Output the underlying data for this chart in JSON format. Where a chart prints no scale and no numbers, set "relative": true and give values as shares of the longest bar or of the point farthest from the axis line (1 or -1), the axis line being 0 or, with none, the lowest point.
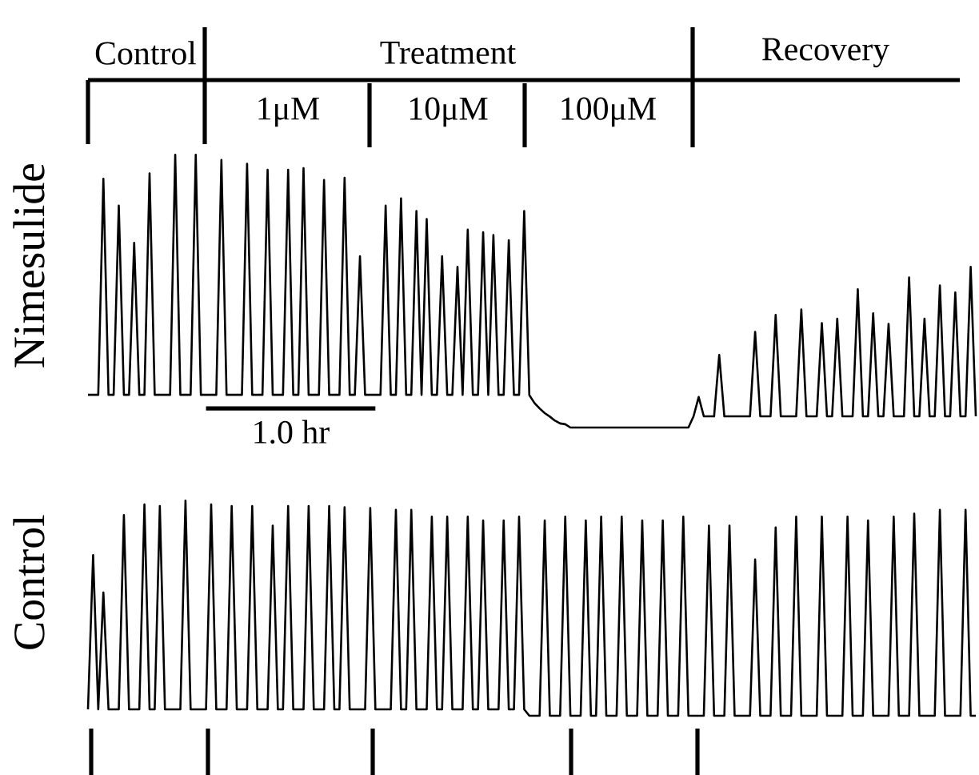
{
  "chart_data": [
    {
      "type": "line",
      "relative": true,
      "ylabel": "Nimesulide",
      "annotations": [
        "Control",
        "Treatment",
        "Recovery",
        "1μM",
        "10μM",
        "100μM"
      ],
      "categories": [
        null,
        null,
        null,
        null,
        null,
        null,
        null,
        null,
        null,
        null,
        null,
        null,
        null,
        null,
        null,
        null,
        null,
        null,
        null,
        null,
        null,
        null,
        null,
        null,
        null,
        null,
        null,
        null,
        null,
        null,
        null,
        null,
        null,
        null,
        null,
        null,
        null,
        null,
        null,
        null,
        null,
        null,
        null,
        null,
        null,
        null,
        null,
        null,
        null,
        null,
        null,
        null,
        null,
        null,
        null,
        null,
        null,
        null,
        null,
        null,
        null,
        null,
        null,
        null,
        null,
        null,
        null,
        null,
        null,
        null,
        null,
        null,
        null,
        null,
        null,
        null,
        null,
        null,
        null,
        null,
        null,
        null,
        null,
        null,
        null,
        null,
        null,
        null,
        null,
        null,
        null,
        null,
        null,
        null,
        null,
        null,
        null,
        null,
        null,
        null,
        null,
        null,
        null,
        null,
        null,
        null,
        null,
        null,
        null,
        null,
        null,
        null,
        null,
        null,
        null,
        null,
        null,
        null,
        null,
        null,
        null,
        null,
        null,
        null,
        null,
        null,
        null,
        null,
        null,
        null,
        null,
        null,
        null,
        null,
        null,
        null,
        null,
        null,
        null,
        null,
        null,
        null,
        null,
        null,
        null,
        null,
        null,
        null,
        null,
        null,
        null,
        null,
        null,
        null,
        null,
        null,
        null,
        null,
        null,
        null,
        null,
        null,
        null,
        null,
        null,
        null,
        null,
        null,
        null,
        null,
        null,
        null,
        null,
        null
      ],
      "series": [
        {
          "color": "#000000",
          "values": [
            0.12,
            0.12,
            0.12,
            0.912,
            0.12,
            0.12,
            0.814,
            0.12,
            0.12,
            0.677,
            0.12,
            0.12,
            0.932,
            0.12,
            0.12,
            0.12,
            0.12,
            1,
            0.12,
            0.12,
            0.12,
            1,
            0.12,
            0.12,
            0.12,
            0.12,
            0.981,
            0.12,
            0.12,
            0.12,
            0.12,
            0.967,
            0.12,
            0.12,
            0.12,
            0.945,
            0.12,
            0.12,
            0.12,
            0.945,
            0.12,
            0.12,
            0.951,
            0.12,
            0.12,
            0.12,
            0.908,
            0.12,
            0.12,
            0.12,
            0.916,
            0.12,
            0.12,
            0.628,
            0.12,
            0.12,
            0.12,
            0.12,
            0.814,
            0.12,
            0.12,
            0.84,
            0.12,
            0.12,
            0.794,
            0.12,
            0.765,
            0.12,
            0.12,
            0.628,
            0.12,
            0.12,
            0.589,
            0.12,
            0.726,
            0.12,
            0.12,
            0.716,
            0.12,
            0.706,
            0.12,
            0.12,
            0.687,
            0.12,
            0.12,
            0.794,
            0.119,
            0.09,
            0.07,
            0.053,
            0.04,
            0.025,
            0.015,
            0.012,
            0,
            0,
            0,
            0,
            0,
            0,
            0,
            0,
            0,
            0,
            0,
            0,
            0,
            0,
            0,
            0,
            0,
            0,
            0,
            0,
            0,
            0,
            0,
            0,
            0.041,
            0.112,
            0.041,
            0.041,
            0.041,
            0.266,
            0.041,
            0.041,
            0.041,
            0.041,
            0.041,
            0.041,
            0.351,
            0.041,
            0.041,
            0.041,
            0.413,
            0.041,
            0.041,
            0.041,
            0.041,
            0.433,
            0.041,
            0.041,
            0.041,
            0.383,
            0.041,
            0.041,
            0.399,
            0.041,
            0.041,
            0.041,
            0.507,
            0.041,
            0.041,
            0.419,
            0.041,
            0.041,
            0.38,
            0.041,
            0.041,
            0.041,
            0.55,
            0.041,
            0.041,
            0.399,
            0.041,
            0.041,
            0.521,
            0.041,
            0.041,
            0.495,
            0.041,
            0.041,
            0.589,
            0.041
          ]
        },
        {
          "name": "1.0 hr",
          "color": "#000000",
          "values": [
            null,
            null,
            null,
            null,
            null,
            null,
            null,
            null,
            null,
            null,
            null,
            null,
            null,
            null,
            null,
            null,
            null,
            null,
            null,
            null,
            null,
            null,
            null,
            0.07,
            null,
            null,
            null,
            null,
            null,
            null,
            null,
            null,
            null,
            null,
            null,
            null,
            null,
            null,
            null,
            null,
            null,
            null,
            null,
            null,
            null,
            null,
            null,
            null,
            null,
            null,
            null,
            null,
            null,
            null,
            null,
            null,
            0.07,
            null,
            null,
            null,
            null,
            null,
            null,
            null,
            null,
            null,
            null,
            null,
            null,
            null,
            null,
            null,
            null,
            null,
            null,
            null,
            null,
            null,
            null,
            null,
            null,
            null,
            null,
            null,
            null,
            null,
            null,
            null,
            null,
            null,
            null,
            null,
            null,
            null,
            null,
            null,
            null,
            null,
            null,
            null,
            null,
            null,
            null,
            null,
            null,
            null,
            null,
            null,
            null,
            null,
            null,
            null,
            null,
            null,
            null,
            null,
            null,
            null,
            null,
            null,
            null,
            null,
            null,
            null,
            null,
            null,
            null,
            null,
            null,
            null,
            null,
            null,
            null,
            null,
            null,
            null,
            null,
            null,
            null,
            null,
            null,
            null,
            null,
            null,
            null,
            null,
            null,
            null,
            null,
            null,
            null,
            null,
            null,
            null,
            null,
            null,
            null,
            null,
            null,
            null,
            null,
            null,
            null,
            null,
            null,
            null,
            null,
            null,
            null,
            null,
            null,
            null,
            null,
            null
          ]
        }
      ]
    },
    {
      "type": "line",
      "relative": true,
      "ylabel": "Control",
      "categories": [
        null,
        null,
        null,
        null,
        null,
        null,
        null,
        null,
        null,
        null,
        null,
        null,
        null,
        null,
        null,
        null,
        null,
        null,
        null,
        null,
        null,
        null,
        null,
        null,
        null,
        null,
        null,
        null,
        null,
        null,
        null,
        null,
        null,
        null,
        null,
        null,
        null,
        null,
        null,
        null,
        null,
        null,
        null,
        null,
        null,
        null,
        null,
        null,
        null,
        null,
        null,
        null,
        null,
        null,
        null,
        null,
        null,
        null,
        null,
        null,
        null,
        null,
        null,
        null,
        null,
        null,
        null,
        null,
        null,
        null,
        null,
        null,
        null,
        null,
        null,
        null,
        null,
        null,
        null,
        null,
        null,
        null,
        null,
        null,
        null,
        null,
        null,
        null,
        null,
        null,
        null,
        null,
        null,
        null,
        null,
        null,
        null,
        null,
        null,
        null,
        null,
        null,
        null,
        null,
        null,
        null,
        null,
        null,
        null,
        null,
        null,
        null,
        null,
        null,
        null,
        null,
        null,
        null,
        null,
        null,
        null,
        null,
        null,
        null,
        null,
        null,
        null,
        null,
        null,
        null,
        null,
        null,
        null,
        null,
        null,
        null,
        null,
        null,
        null,
        null,
        null,
        null,
        null,
        null,
        null,
        null,
        null,
        null,
        null,
        null,
        null,
        null,
        null,
        null,
        null,
        null,
        null,
        null,
        null,
        null,
        null,
        null,
        null,
        null,
        null,
        null,
        null,
        null,
        null,
        null,
        null,
        null,
        null,
        null
      ],
      "series": [
        {
          "color": "#000000",
          "values": [
            0.03,
            0.747,
            0.03,
            0.573,
            0.03,
            0.03,
            0.03,
            0.933,
            0.03,
            0.03,
            0.03,
            0.983,
            0.03,
            0.03,
            0.975,
            0.03,
            0.03,
            0.03,
            0.03,
            1,
            0.03,
            0.03,
            0.03,
            0.03,
            0.983,
            0.03,
            0.03,
            0.03,
            0.975,
            0.03,
            0.03,
            0.03,
            0.975,
            0.03,
            0.03,
            0.03,
            0.884,
            0.03,
            0.03,
            0.975,
            0.03,
            0.03,
            0.03,
            0.975,
            0.03,
            0.03,
            0.03,
            0.975,
            0.03,
            0.03,
            0.97,
            0.03,
            0.03,
            0.03,
            0.03,
            0.966,
            0.03,
            0.03,
            0.03,
            0.03,
            0.958,
            0.03,
            0.03,
            0.958,
            0.03,
            0.03,
            0.03,
            0.926,
            0.03,
            0.03,
            0.926,
            0.03,
            0.03,
            0.03,
            0.926,
            0.03,
            0.03,
            0.908,
            0.03,
            0.03,
            0.03,
            0.908,
            0.03,
            0.03,
            0.926,
            0.03,
            0,
            0,
            0,
            0.908,
            0,
            0,
            0,
            0.926,
            0,
            0,
            0,
            0.908,
            0,
            0,
            0.926,
            0,
            0,
            0,
            0.926,
            0,
            0,
            0,
            0.908,
            0,
            0,
            0,
            0.908,
            0,
            0,
            0,
            0.926,
            0,
            0,
            0,
            0,
            0.884,
            0,
            0,
            0,
            0.884,
            0,
            0,
            0,
            0,
            0.727,
            0,
            0,
            0,
            0.876,
            0,
            0,
            0,
            0.926,
            0,
            0,
            0,
            0,
            0.926,
            0,
            0,
            0,
            0,
            0.926,
            0,
            0,
            0,
            0.908,
            0,
            0,
            0,
            0,
            0.926,
            0,
            0,
            0,
            0.94,
            0,
            0,
            0,
            0,
            0.958,
            0,
            0,
            0,
            0,
            0.958,
            0,
            0
          ]
        }
      ]
    }
  ]
}
